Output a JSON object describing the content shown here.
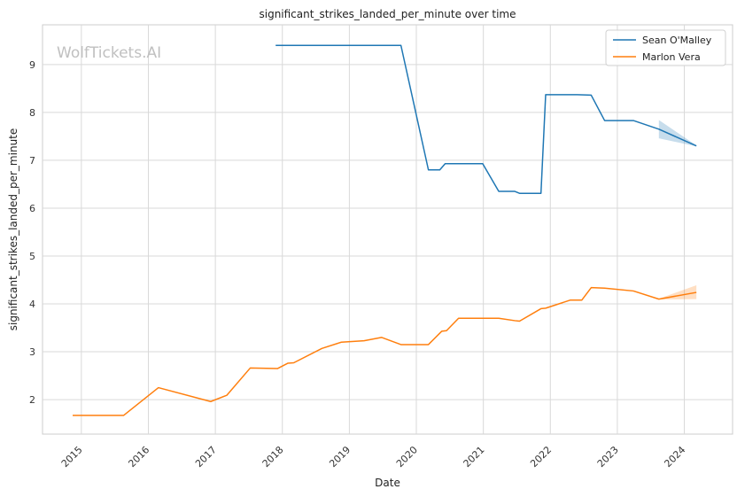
{
  "chart_data": {
    "type": "line",
    "title": "significant_strikes_landed_per_minute over time",
    "xlabel": "Date",
    "ylabel": "significant_strikes_landed_per_minute",
    "xlim": [
      2014.42,
      2024.72
    ],
    "ylim": [
      1.28,
      9.83
    ],
    "x_ticks": [
      2015,
      2016,
      2017,
      2018,
      2019,
      2020,
      2021,
      2022,
      2023,
      2024
    ],
    "y_ticks": [
      2,
      3,
      4,
      5,
      6,
      7,
      8,
      9
    ],
    "grid": true,
    "legend_position": "top-right",
    "watermark": "WolfTickets.AI",
    "series": [
      {
        "name": "Sean O'Malley",
        "color": "#1f77b4",
        "points": [
          [
            2017.9,
            9.4
          ],
          [
            2019.77,
            9.4
          ],
          [
            2020.18,
            6.8
          ],
          [
            2020.35,
            6.8
          ],
          [
            2020.43,
            6.93
          ],
          [
            2020.99,
            6.93
          ],
          [
            2021.23,
            6.35
          ],
          [
            2021.47,
            6.35
          ],
          [
            2021.54,
            6.31
          ],
          [
            2021.86,
            6.31
          ],
          [
            2021.93,
            8.37
          ],
          [
            2022.4,
            8.37
          ],
          [
            2022.61,
            8.36
          ],
          [
            2022.81,
            7.83
          ],
          [
            2023.24,
            7.83
          ],
          [
            2023.62,
            7.65
          ],
          [
            2024.18,
            7.3
          ]
        ],
        "band": [
          [
            2023.62,
            7.46,
            7.84
          ],
          [
            2024.18,
            7.29,
            7.31
          ]
        ]
      },
      {
        "name": "Marlon Vera",
        "color": "#ff7f0e",
        "points": [
          [
            2014.87,
            1.67
          ],
          [
            2015.63,
            1.67
          ],
          [
            2016.15,
            2.25
          ],
          [
            2016.93,
            1.96
          ],
          [
            2017.17,
            2.09
          ],
          [
            2017.52,
            2.66
          ],
          [
            2017.93,
            2.65
          ],
          [
            2018.08,
            2.76
          ],
          [
            2018.17,
            2.77
          ],
          [
            2018.59,
            3.07
          ],
          [
            2018.88,
            3.2
          ],
          [
            2019.22,
            3.23
          ],
          [
            2019.48,
            3.3
          ],
          [
            2019.77,
            3.15
          ],
          [
            2020.18,
            3.15
          ],
          [
            2020.38,
            3.43
          ],
          [
            2020.45,
            3.44
          ],
          [
            2020.63,
            3.7
          ],
          [
            2021.23,
            3.7
          ],
          [
            2021.47,
            3.65
          ],
          [
            2021.54,
            3.64
          ],
          [
            2021.86,
            3.9
          ],
          [
            2021.93,
            3.91
          ],
          [
            2022.3,
            4.08
          ],
          [
            2022.47,
            4.08
          ],
          [
            2022.61,
            4.34
          ],
          [
            2022.81,
            4.33
          ],
          [
            2023.24,
            4.27
          ],
          [
            2023.62,
            4.1
          ],
          [
            2024.18,
            4.24
          ]
        ],
        "band": [
          [
            2023.62,
            4.09,
            4.11
          ],
          [
            2024.18,
            4.1,
            4.39
          ]
        ]
      }
    ]
  }
}
